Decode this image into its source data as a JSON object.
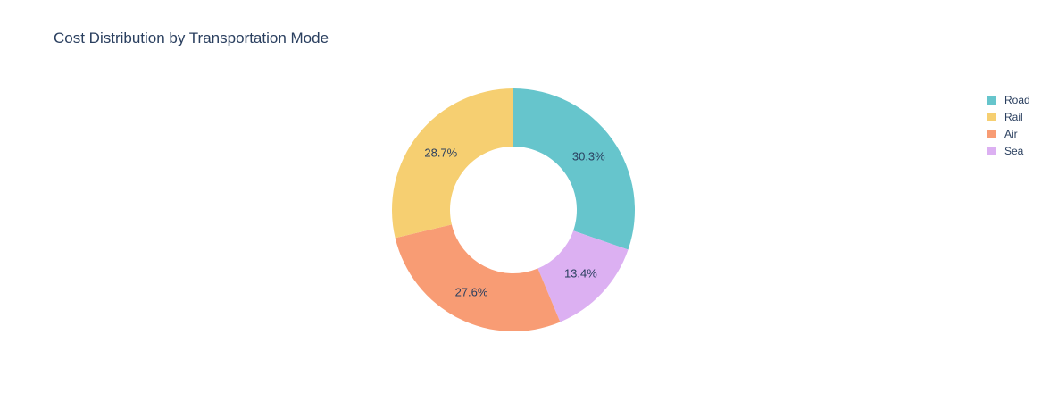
{
  "title": "Cost Distribution by Transportation Mode",
  "colors": {
    "background": "#ffffff",
    "title_text": "#2a3f5f",
    "label_text": "#2a3f5f",
    "legend_text": "#2a3f5f"
  },
  "chart_data": {
    "type": "pie",
    "title": "Cost Distribution by Transportation Mode",
    "labels": [
      "Road",
      "Rail",
      "Air",
      "Sea"
    ],
    "values": [
      30.3,
      28.7,
      27.6,
      13.4
    ],
    "value_labels": [
      "30.3%",
      "28.7%",
      "27.6%",
      "13.4%"
    ],
    "colors": [
      "#66C5CC",
      "#F6CF71",
      "#F89C74",
      "#DCB0F2"
    ],
    "hole_ratio": 0.52,
    "display_order_clockwise_from_top": [
      "Road",
      "Sea",
      "Air",
      "Rail"
    ],
    "label_position": "inside",
    "legend_position": "right"
  },
  "legend": {
    "items": [
      {
        "label": "Road",
        "color": "#66C5CC"
      },
      {
        "label": "Rail",
        "color": "#F6CF71"
      },
      {
        "label": "Air",
        "color": "#F89C74"
      },
      {
        "label": "Sea",
        "color": "#DCB0F2"
      }
    ]
  }
}
